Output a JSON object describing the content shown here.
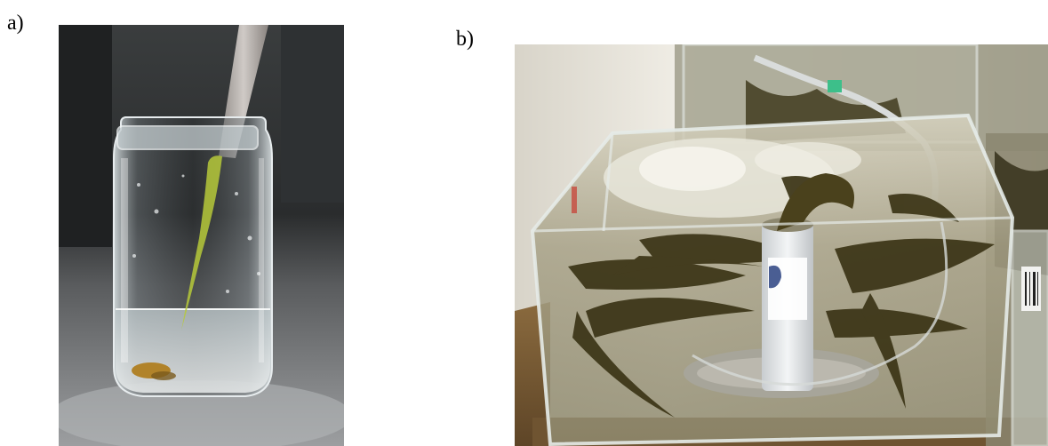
{
  "figure": {
    "panels": [
      {
        "label": "a)",
        "content": "glass-jar-with-pipette-photo"
      },
      {
        "label": "b)",
        "content": "seaweed-aquarium-tank-photo"
      }
    ]
  },
  "colors": {
    "background": "#ffffff",
    "label_text": "#000000",
    "photo_a_background": "#2b2d2e",
    "jar_glass": "#c9d3d6",
    "algae_tip_green": "#b6c93a",
    "photo_b_wall": "#e6e3da",
    "tank_water": "#b8b39a",
    "seaweed_brown": "#3b3416",
    "tube_white": "#e9ecee",
    "tube_label_blue": "#4a5e93"
  }
}
